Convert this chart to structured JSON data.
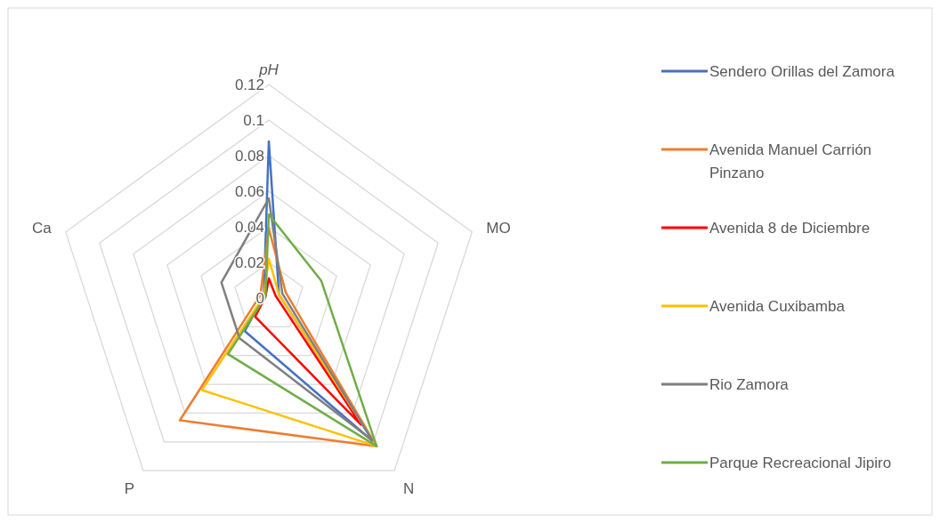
{
  "chart_data": {
    "type": "radar",
    "categories": [
      "pH",
      "MO",
      "N",
      "P",
      "Ca"
    ],
    "series": [
      {
        "name": "Sendero Orillas del Zamora",
        "color": "#4472c4",
        "values": [
          0.088,
          0.006,
          0.1,
          0.023,
          0.003
        ]
      },
      {
        "name": "Avenida Manuel Carrión Pinzano",
        "color": "#ed7d31",
        "values": [
          0.039,
          0.01,
          0.103,
          0.085,
          0.005
        ]
      },
      {
        "name": "Avenida 8 de Diciembre",
        "color": "#ff0000",
        "values": [
          0.011,
          0.004,
          0.088,
          0.013,
          0.002
        ]
      },
      {
        "name": "Avenida Cuxibamba",
        "color": "#ffc000",
        "values": [
          0.022,
          0.006,
          0.103,
          0.064,
          0.003
        ]
      },
      {
        "name": "Rio Zamora",
        "color": "#7f7f7f",
        "values": [
          0.056,
          0.008,
          0.099,
          0.028,
          0.028
        ]
      },
      {
        "name": "Parque Recreacional Jipiro",
        "color": "#70ad47",
        "values": [
          0.047,
          0.031,
          0.103,
          0.039,
          0.002
        ]
      }
    ],
    "ylim": [
      0,
      0.12
    ],
    "yticks": [
      0,
      0.02,
      0.04,
      0.06,
      0.08,
      0.1,
      0.12
    ],
    "grid": true,
    "legend": "right"
  }
}
